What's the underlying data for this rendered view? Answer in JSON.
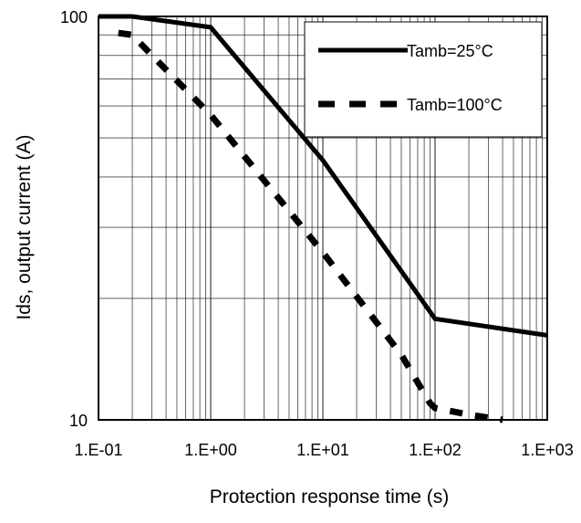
{
  "chart_data": {
    "type": "line",
    "title": "",
    "xlabel": "Protection response time (s)",
    "ylabel": "Ids, output current (A)",
    "xscale": "log",
    "yscale": "log",
    "xlim": [
      0.1,
      1000
    ],
    "ylim": [
      10,
      100
    ],
    "grid": true,
    "legend_position": "top-right",
    "x_tick_labels": [
      "1.E-01",
      "1.E+00",
      "1.E+01",
      "1.E+02",
      "1.E+03"
    ],
    "y_tick_labels": [
      "10",
      "100"
    ],
    "series": [
      {
        "name": "Tamb=25°C",
        "style": "solid",
        "color": "#000000",
        "points": [
          [
            0.1,
            100
          ],
          [
            0.2,
            100
          ],
          [
            1,
            94
          ],
          [
            10,
            44
          ],
          [
            100,
            17.8
          ],
          [
            1000,
            16.2
          ]
        ]
      },
      {
        "name": "Tamb=100°C",
        "style": "dashed",
        "color": "#000000",
        "points": [
          [
            0.15,
            91
          ],
          [
            0.2,
            90
          ],
          [
            0.3,
            80
          ],
          [
            1,
            57
          ],
          [
            10,
            26
          ],
          [
            50,
            14.5
          ],
          [
            90,
            11
          ],
          [
            100,
            10.7
          ],
          [
            200,
            10.3
          ],
          [
            400,
            10
          ]
        ]
      }
    ]
  }
}
